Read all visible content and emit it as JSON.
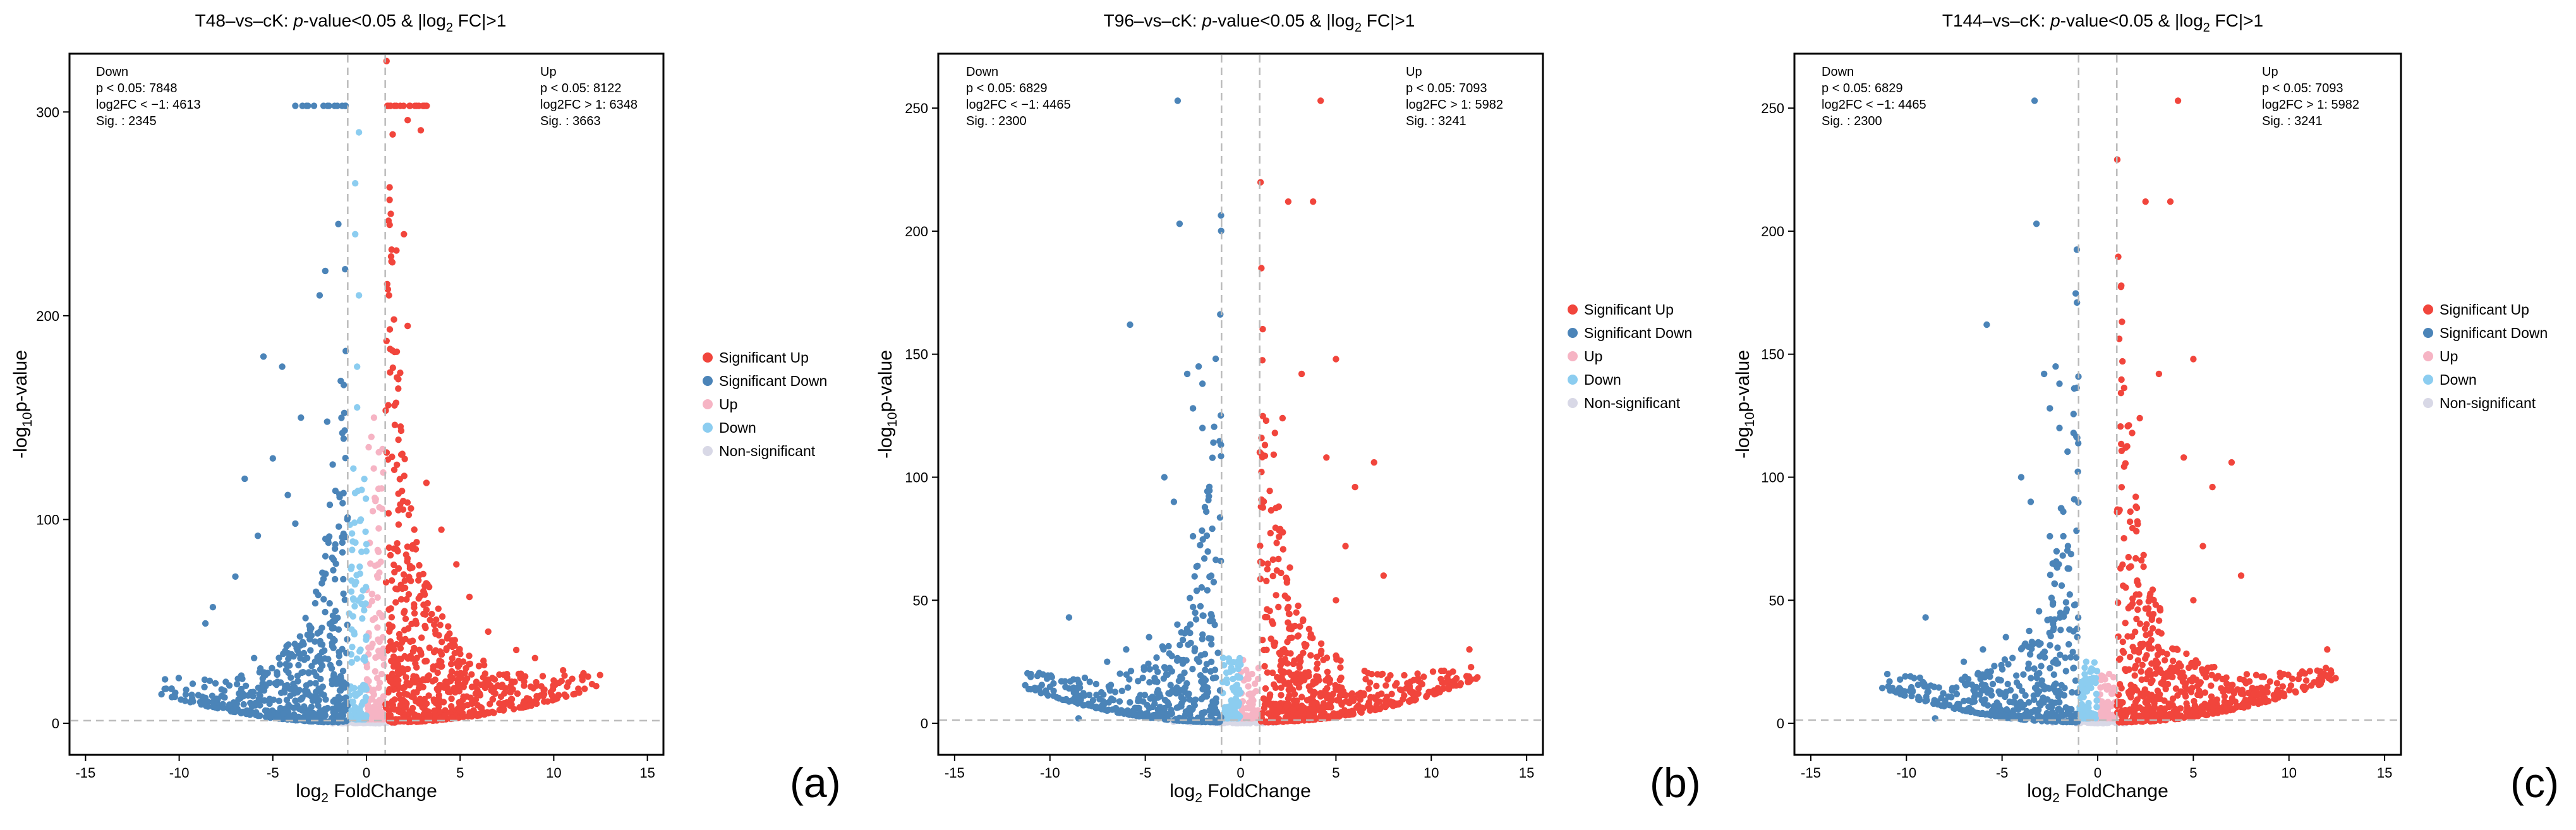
{
  "colors": {
    "sig_up": "#f1453c",
    "sig_down": "#4b84b8",
    "up": "#f6b4c4",
    "down": "#8ccdf0",
    "nonsig": "#d8d8e6"
  },
  "chart_data": [
    {
      "type": "scatter",
      "panel_label": "(a)",
      "title_prefix": "T48–vs–cK: ",
      "title_p": "p",
      "title_middle": "-value<0.05 & |log",
      "title_sub": "2",
      "title_suffix": " FC|>1",
      "xlabel_pre": "log",
      "xlabel_sub": "2",
      "xlabel_post": " FoldChange",
      "ylabel_pre": "-log",
      "ylabel_sub": "10",
      "ylabel_post": "p-value",
      "xlim": [
        -15,
        15
      ],
      "ylim": [
        0,
        320
      ],
      "xticks": [
        -15,
        -10,
        -5,
        0,
        5,
        10,
        15
      ],
      "yticks": [
        0,
        100,
        200,
        300
      ],
      "fc_threshold": 1,
      "y_threshold": 1.3,
      "y_cap": 303,
      "stats_down": [
        "Down",
        "p < 0.05: 7848",
        "log2FC < −1: 4613",
        "Sig. : 2345"
      ],
      "stats_up": [
        "Up",
        "p < 0.05: 8122",
        "log2FC > 1: 6348",
        "Sig. : 3663"
      ],
      "legend": [
        "Significant Up",
        "Significant Down",
        "Up",
        "Down",
        "Non-significant"
      ],
      "n_sig_up": 700,
      "n_sig_down": 520,
      "n_up": 140,
      "n_down": 130,
      "n_nonsig": 110,
      "x_max": 12.5,
      "x_min": -11,
      "density_decay": 0.28,
      "highlight_up": [
        [
          1.2,
          303
        ],
        [
          1.8,
          303
        ],
        [
          2.3,
          303
        ],
        [
          2.8,
          303
        ],
        [
          1.5,
          303
        ],
        [
          3.1,
          303
        ],
        [
          2.2,
          296
        ],
        [
          1.4,
          289
        ],
        [
          2.9,
          291
        ],
        [
          1.3,
          250
        ],
        [
          2.0,
          240
        ],
        [
          1.6,
          232
        ],
        [
          1.2,
          210
        ],
        [
          2.2,
          195
        ],
        [
          1.8,
          172
        ],
        [
          1.5,
          156
        ],
        [
          3.2,
          118
        ],
        [
          4.0,
          95
        ],
        [
          4.8,
          78
        ],
        [
          5.5,
          62
        ],
        [
          6.5,
          45
        ],
        [
          8.0,
          36
        ],
        [
          9.0,
          32
        ],
        [
          10.5,
          26
        ],
        [
          11.5,
          23
        ],
        [
          10.0,
          21
        ]
      ],
      "highlight_down": [
        [
          -3.8,
          303
        ],
        [
          -2.8,
          303
        ],
        [
          -2.0,
          303
        ],
        [
          -1.3,
          303
        ],
        [
          -3.2,
          303
        ],
        [
          -1.7,
          303
        ],
        [
          -2.5,
          210
        ],
        [
          -2.2,
          222
        ],
        [
          -1.5,
          245
        ],
        [
          -5.5,
          180
        ],
        [
          -4.5,
          175
        ],
        [
          -3.5,
          150
        ],
        [
          -5.0,
          130
        ],
        [
          -4.2,
          112
        ],
        [
          -6.5,
          120
        ],
        [
          -5.8,
          92
        ],
        [
          -3.8,
          98
        ],
        [
          -7.0,
          72
        ],
        [
          -8.2,
          57
        ],
        [
          -8.6,
          49
        ],
        [
          -10.4,
          17
        ],
        [
          -8.0,
          12
        ],
        [
          -6.0,
          32
        ],
        [
          -1.8,
          127
        ],
        [
          -2.1,
          148
        ]
      ],
      "highlight_lightup": [
        [
          0.5,
          110
        ],
        [
          0.6,
          85
        ],
        [
          0.4,
          150
        ],
        [
          0.3,
          60
        ],
        [
          0.7,
          40
        ]
      ],
      "highlight_lightdown": [
        [
          -0.4,
          210
        ],
        [
          -0.6,
          240
        ],
        [
          -0.5,
          155
        ],
        [
          -0.3,
          100
        ],
        [
          -0.7,
          125
        ],
        [
          -0.5,
          175
        ],
        [
          -0.8,
          70
        ],
        [
          -0.4,
          290
        ],
        [
          -0.6,
          265
        ]
      ]
    },
    {
      "type": "scatter",
      "panel_label": "(b)",
      "title_prefix": "T96–vs–cK: ",
      "title_p": "p",
      "title_middle": "-value<0.05 & |log",
      "title_sub": "2",
      "title_suffix": " FC|>1",
      "xlabel_pre": "log",
      "xlabel_sub": "2",
      "xlabel_post": " FoldChange",
      "ylabel_pre": "-log",
      "ylabel_sub": "10",
      "ylabel_post": "p-value",
      "xlim": [
        -15,
        15
      ],
      "ylim": [
        0,
        265
      ],
      "xticks": [
        -15,
        -10,
        -5,
        0,
        5,
        10,
        15
      ],
      "yticks": [
        0,
        50,
        100,
        150,
        200,
        250
      ],
      "fc_threshold": 1,
      "y_threshold": 1.3,
      "y_cap": 0,
      "stats_down": [
        "Down",
        "p < 0.05: 6829",
        "log2FC < −1: 4465",
        "Sig. : 2300"
      ],
      "stats_up": [
        "Up",
        "p < 0.05: 7093",
        "log2FC > 1: 5982",
        "Sig. : 3241"
      ],
      "legend": [
        "Significant Up",
        "Significant Down",
        "Up",
        "Down",
        "Non-significant"
      ],
      "n_sig_up": 620,
      "n_sig_down": 480,
      "n_up": 60,
      "n_down": 80,
      "n_nonsig": 90,
      "x_max": 12.5,
      "x_min": -11.3,
      "density_decay": 0.22,
      "highlight_up": [
        [
          4.2,
          253
        ],
        [
          2.5,
          212
        ],
        [
          3.8,
          212
        ],
        [
          5.0,
          148
        ],
        [
          3.2,
          142
        ],
        [
          2.2,
          124
        ],
        [
          1.8,
          118
        ],
        [
          4.5,
          108
        ],
        [
          7.0,
          106
        ],
        [
          6.0,
          96
        ],
        [
          2.0,
          88
        ],
        [
          5.5,
          72
        ],
        [
          7.5,
          60
        ],
        [
          5.0,
          50
        ],
        [
          12.0,
          30
        ],
        [
          10.5,
          18
        ]
      ],
      "highlight_down": [
        [
          -3.3,
          253
        ],
        [
          -3.2,
          203
        ],
        [
          -5.8,
          162
        ],
        [
          -2.2,
          145
        ],
        [
          -2.8,
          142
        ],
        [
          -2.0,
          138
        ],
        [
          -2.5,
          128
        ],
        [
          -2.0,
          120
        ],
        [
          -4.0,
          100
        ],
        [
          -3.5,
          90
        ],
        [
          -1.8,
          86
        ],
        [
          -2.5,
          76
        ],
        [
          -9.0,
          43
        ],
        [
          -4.8,
          35
        ],
        [
          -11.0,
          20
        ],
        [
          -8.5,
          2
        ],
        [
          -7.0,
          25
        ],
        [
          -6.0,
          30
        ]
      ],
      "highlight_lightup": [
        [
          0.6,
          20
        ],
        [
          0.4,
          15
        ]
      ],
      "highlight_lightdown": [
        [
          -0.6,
          25
        ],
        [
          -0.4,
          18
        ]
      ]
    },
    {
      "type": "scatter",
      "panel_label": "(c)",
      "title_prefix": "T144–vs–cK: ",
      "title_p": "p",
      "title_middle": "-value<0.05 & |log",
      "title_sub": "2",
      "title_suffix": " FC|>1",
      "xlabel_pre": "log",
      "xlabel_sub": "2",
      "xlabel_post": " FoldChange",
      "ylabel_pre": "-log",
      "ylabel_sub": "10",
      "ylabel_post": "p-value",
      "xlim": [
        -15,
        15
      ],
      "ylim": [
        0,
        265
      ],
      "xticks": [
        -15,
        -10,
        -5,
        0,
        5,
        10,
        15
      ],
      "yticks": [
        0,
        50,
        100,
        150,
        200,
        250
      ],
      "fc_threshold": 1,
      "y_threshold": 1.3,
      "y_cap": 0,
      "stats_down": [
        "Down",
        "p < 0.05: 6829",
        "log2FC < −1: 4465",
        "Sig. : 2300"
      ],
      "stats_up": [
        "Up",
        "p < 0.05: 7093",
        "log2FC > 1: 5982",
        "Sig. : 3241"
      ],
      "legend": [
        "Significant Up",
        "Significant Down",
        "Up",
        "Down",
        "Non-significant"
      ],
      "n_sig_up": 620,
      "n_sig_down": 480,
      "n_up": 60,
      "n_down": 80,
      "n_nonsig": 90,
      "x_max": 12.5,
      "x_min": -11.3,
      "density_decay": 0.22,
      "highlight_up": [
        [
          4.2,
          253
        ],
        [
          2.5,
          212
        ],
        [
          3.8,
          212
        ],
        [
          5.0,
          148
        ],
        [
          3.2,
          142
        ],
        [
          2.2,
          124
        ],
        [
          1.8,
          118
        ],
        [
          4.5,
          108
        ],
        [
          7.0,
          106
        ],
        [
          6.0,
          96
        ],
        [
          2.0,
          88
        ],
        [
          5.5,
          72
        ],
        [
          7.5,
          60
        ],
        [
          5.0,
          50
        ],
        [
          12.0,
          30
        ],
        [
          10.5,
          18
        ]
      ],
      "highlight_down": [
        [
          -3.3,
          253
        ],
        [
          -3.2,
          203
        ],
        [
          -5.8,
          162
        ],
        [
          -2.2,
          145
        ],
        [
          -2.8,
          142
        ],
        [
          -2.0,
          138
        ],
        [
          -2.5,
          128
        ],
        [
          -2.0,
          120
        ],
        [
          -4.0,
          100
        ],
        [
          -3.5,
          90
        ],
        [
          -1.8,
          86
        ],
        [
          -2.5,
          76
        ],
        [
          -9.0,
          43
        ],
        [
          -4.8,
          35
        ],
        [
          -11.0,
          20
        ],
        [
          -8.5,
          2
        ],
        [
          -7.0,
          25
        ],
        [
          -6.0,
          30
        ]
      ],
      "highlight_lightup": [
        [
          0.6,
          20
        ],
        [
          0.4,
          15
        ]
      ],
      "highlight_lightdown": [
        [
          -0.6,
          25
        ],
        [
          -0.4,
          18
        ]
      ]
    }
  ]
}
